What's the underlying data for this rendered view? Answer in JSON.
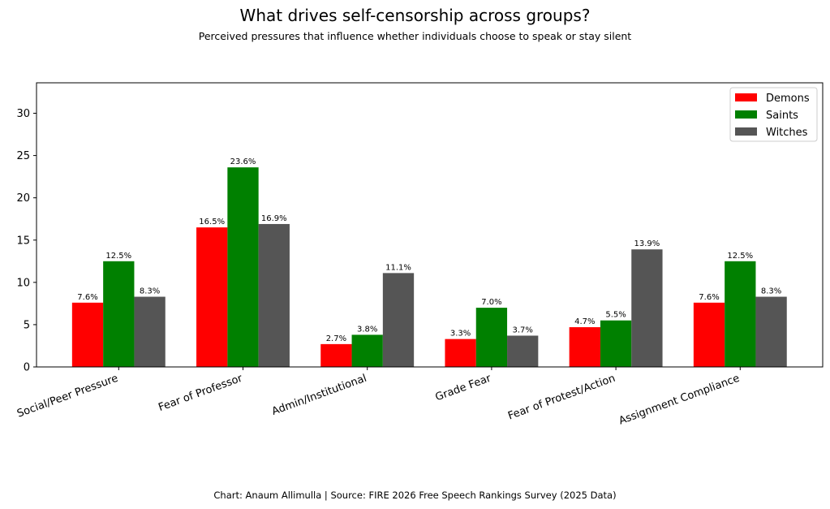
{
  "chart_data": {
    "type": "bar",
    "title": "What drives self-censorship across groups?",
    "subtitle": "Perceived pressures that influence whether individuals choose to speak or stay silent",
    "xlabel": "",
    "ylabel": "",
    "categories": [
      "Social/Peer Pressure",
      "Fear of Professor",
      "Admin/Institutional",
      "Grade Fear",
      "Fear of Protest/Action",
      "Assignment Compliance"
    ],
    "series": [
      {
        "name": "Demons",
        "color": "#ff0000",
        "values": [
          7.6,
          16.5,
          2.7,
          3.3,
          4.7,
          7.6
        ],
        "labels": [
          "7.6%",
          "16.5%",
          "2.7%",
          "3.3%",
          "4.7%",
          "7.6%"
        ]
      },
      {
        "name": "Saints",
        "color": "#008000",
        "values": [
          12.5,
          23.6,
          3.8,
          7.0,
          5.5,
          12.5
        ],
        "labels": [
          "12.5%",
          "23.6%",
          "3.8%",
          "7.0%",
          "5.5%",
          "12.5%"
        ]
      },
      {
        "name": "Witches",
        "color": "#555555",
        "values": [
          8.3,
          16.9,
          11.1,
          3.7,
          13.9,
          8.3
        ],
        "labels": [
          "8.3%",
          "16.9%",
          "11.1%",
          "3.7%",
          "13.9%",
          "8.3%"
        ]
      }
    ],
    "ylim": [
      0,
      33.6
    ],
    "yticks": [
      0,
      5,
      10,
      15,
      20,
      25,
      30
    ],
    "grid": false,
    "legend_position": "top-right",
    "footer": "Chart: Anaum Allimulla | Source: FIRE 2026 Free Speech Rankings Survey (2025 Data)"
  }
}
